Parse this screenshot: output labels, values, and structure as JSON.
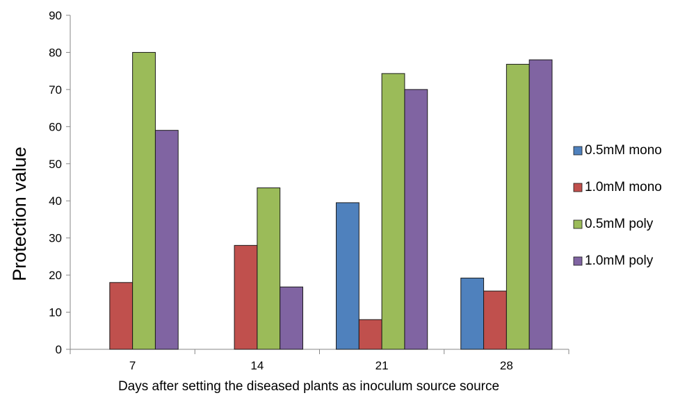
{
  "chart_data": {
    "type": "bar",
    "title": "",
    "xlabel": "Days after setting the diseased plants as inoculum source source",
    "ylabel": "Protection value",
    "categories": [
      "7",
      "14",
      "21",
      "28"
    ],
    "ylim": [
      0,
      90
    ],
    "yticks": [
      0,
      10,
      20,
      30,
      40,
      50,
      60,
      70,
      80,
      90
    ],
    "grid": false,
    "legend_position": "right",
    "series": [
      {
        "name": "0.5mM mono",
        "color": "#4F81BD",
        "values": [
          0,
          0,
          39.5,
          19.2
        ]
      },
      {
        "name": "1.0mM mono",
        "color": "#C0504D",
        "values": [
          18,
          28,
          8,
          15.7
        ]
      },
      {
        "name": "0.5mM poly",
        "color": "#9BBB59",
        "values": [
          80,
          43.5,
          74.3,
          76.8
        ]
      },
      {
        "name": "1.0mM poly",
        "color": "#8064A2",
        "values": [
          59,
          16.8,
          70,
          78
        ]
      }
    ]
  }
}
